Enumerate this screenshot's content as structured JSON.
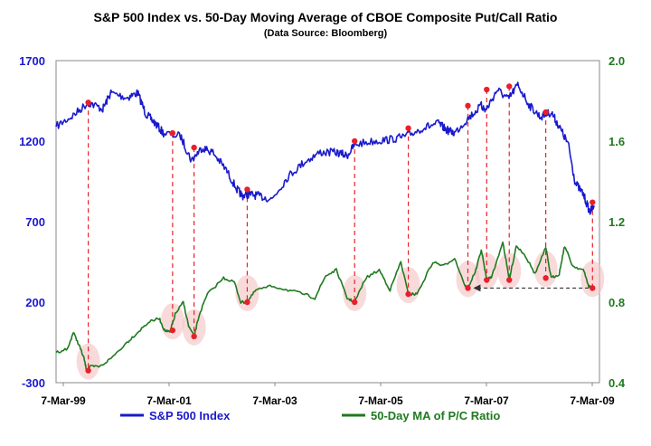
{
  "chart_data": {
    "type": "line",
    "title": "S&P 500 Index vs. 50-Day Moving Average of CBOE Composite Put/Call Ratio",
    "subtitle": "(Data Source: Bloomberg)",
    "x_ticks": [
      "7-Mar-99",
      "7-Mar-01",
      "7-Mar-03",
      "7-Mar-05",
      "7-Mar-07",
      "7-Mar-09"
    ],
    "x_range": [
      1999.18,
      2009.3
    ],
    "y_left": {
      "range": [
        -300,
        1700
      ],
      "ticks": [
        -300,
        200,
        700,
        1200,
        1700
      ]
    },
    "y_right": {
      "range": [
        0.4,
        2.0
      ],
      "ticks": [
        "0.4",
        "0.8",
        "1.2",
        "1.6",
        "2.0"
      ]
    },
    "colors": {
      "sp500": "#1a1acc",
      "pc": "#1f7a1f",
      "marker": "#e8202a",
      "halo": "#f4c2c2",
      "arrow": "#333333"
    },
    "series": [
      {
        "name": "S&P 500 Index",
        "axis": "left",
        "x": [
          1999.18,
          1999.5,
          1999.78,
          2000.05,
          2000.2,
          2000.5,
          2000.7,
          2000.85,
          2001.0,
          2001.18,
          2001.5,
          2001.7,
          2001.9,
          2002.1,
          2002.35,
          2002.55,
          2002.65,
          2002.78,
          2002.95,
          2003.2,
          2003.5,
          2003.8,
          2004.1,
          2004.4,
          2004.6,
          2004.75,
          2005.1,
          2005.4,
          2005.7,
          2006.0,
          2006.3,
          2006.45,
          2006.6,
          2006.85,
          2007.1,
          2007.18,
          2007.4,
          2007.6,
          2007.78,
          2008.0,
          2008.2,
          2008.4,
          2008.55,
          2008.72,
          2008.85,
          2009.0,
          2009.12,
          2009.2
        ],
        "values": [
          1290,
          1360,
          1440,
          1400,
          1500,
          1470,
          1500,
          1370,
          1320,
          1250,
          1230,
          1080,
          1160,
          1130,
          1020,
          900,
          860,
          870,
          860,
          840,
          980,
          1070,
          1130,
          1130,
          1110,
          1180,
          1200,
          1210,
          1230,
          1280,
          1310,
          1270,
          1250,
          1340,
          1420,
          1390,
          1520,
          1460,
          1550,
          1420,
          1350,
          1380,
          1290,
          1180,
          940,
          870,
          760,
          800
        ]
      },
      {
        "name": "50-Day MA of P/C Ratio",
        "axis": "right",
        "x": [
          1999.18,
          1999.4,
          1999.5,
          1999.62,
          1999.7,
          1999.75,
          1999.82,
          2000.0,
          2000.2,
          2000.5,
          2000.7,
          2000.9,
          2001.1,
          2001.2,
          2001.3,
          2001.4,
          2001.55,
          2001.65,
          2001.75,
          2001.85,
          2002.0,
          2002.3,
          2002.5,
          2002.62,
          2002.74,
          2002.9,
          2003.2,
          2003.5,
          2003.8,
          2004.0,
          2004.2,
          2004.4,
          2004.6,
          2004.74,
          2004.95,
          2005.2,
          2005.4,
          2005.6,
          2005.74,
          2005.9,
          2006.2,
          2006.4,
          2006.6,
          2006.8,
          2006.85,
          2007.0,
          2007.1,
          2007.2,
          2007.3,
          2007.5,
          2007.62,
          2007.75,
          2007.9,
          2008.1,
          2008.3,
          2008.4,
          2008.55,
          2008.65,
          2008.8,
          2009.0,
          2009.1,
          2009.17
        ],
        "values": [
          0.55,
          0.57,
          0.65,
          0.58,
          0.52,
          0.46,
          0.48,
          0.48,
          0.52,
          0.6,
          0.65,
          0.7,
          0.72,
          0.66,
          0.65,
          0.74,
          0.8,
          0.68,
          0.63,
          0.74,
          0.84,
          0.92,
          0.9,
          0.8,
          0.8,
          0.86,
          0.88,
          0.86,
          0.84,
          0.82,
          0.93,
          0.96,
          0.82,
          0.8,
          0.92,
          0.96,
          0.86,
          1.0,
          0.84,
          0.84,
          1.0,
          0.98,
          1.02,
          0.88,
          0.87,
          0.96,
          1.06,
          0.91,
          0.93,
          1.1,
          0.91,
          1.08,
          1.04,
          0.94,
          1.07,
          0.92,
          0.94,
          1.08,
          0.98,
          0.96,
          0.88,
          0.87
        ]
      }
    ],
    "markers": [
      {
        "date": 1999.78,
        "sp500": 1440,
        "pc": 0.46
      },
      {
        "date": 2001.35,
        "sp500": 1250,
        "pc": 0.66
      },
      {
        "date": 2001.75,
        "sp500": 1160,
        "pc": 0.63
      },
      {
        "date": 2002.74,
        "sp500": 900,
        "pc": 0.8
      },
      {
        "date": 2004.74,
        "sp500": 1200,
        "pc": 0.8
      },
      {
        "date": 2005.74,
        "sp500": 1280,
        "pc": 0.84
      },
      {
        "date": 2006.85,
        "sp500": 1420,
        "pc": 0.87
      },
      {
        "date": 2007.2,
        "sp500": 1520,
        "pc": 0.91
      },
      {
        "date": 2007.62,
        "sp500": 1540,
        "pc": 0.91
      },
      {
        "date": 2008.3,
        "sp500": 1380,
        "pc": 0.92
      },
      {
        "date": 2009.17,
        "sp500": 820,
        "pc": 0.87
      }
    ],
    "annotation": {
      "type": "dashed-arrow",
      "from": {
        "date": 2009.1,
        "pc": 0.87
      },
      "to": {
        "date": 2006.95,
        "pc": 0.87
      }
    },
    "legend": {
      "position": "bottom",
      "entries": [
        {
          "label": "S&P 500 Index",
          "color": "#1a1acc"
        },
        {
          "label": "50-Day MA of P/C Ratio",
          "color": "#1f7a1f"
        }
      ]
    }
  }
}
